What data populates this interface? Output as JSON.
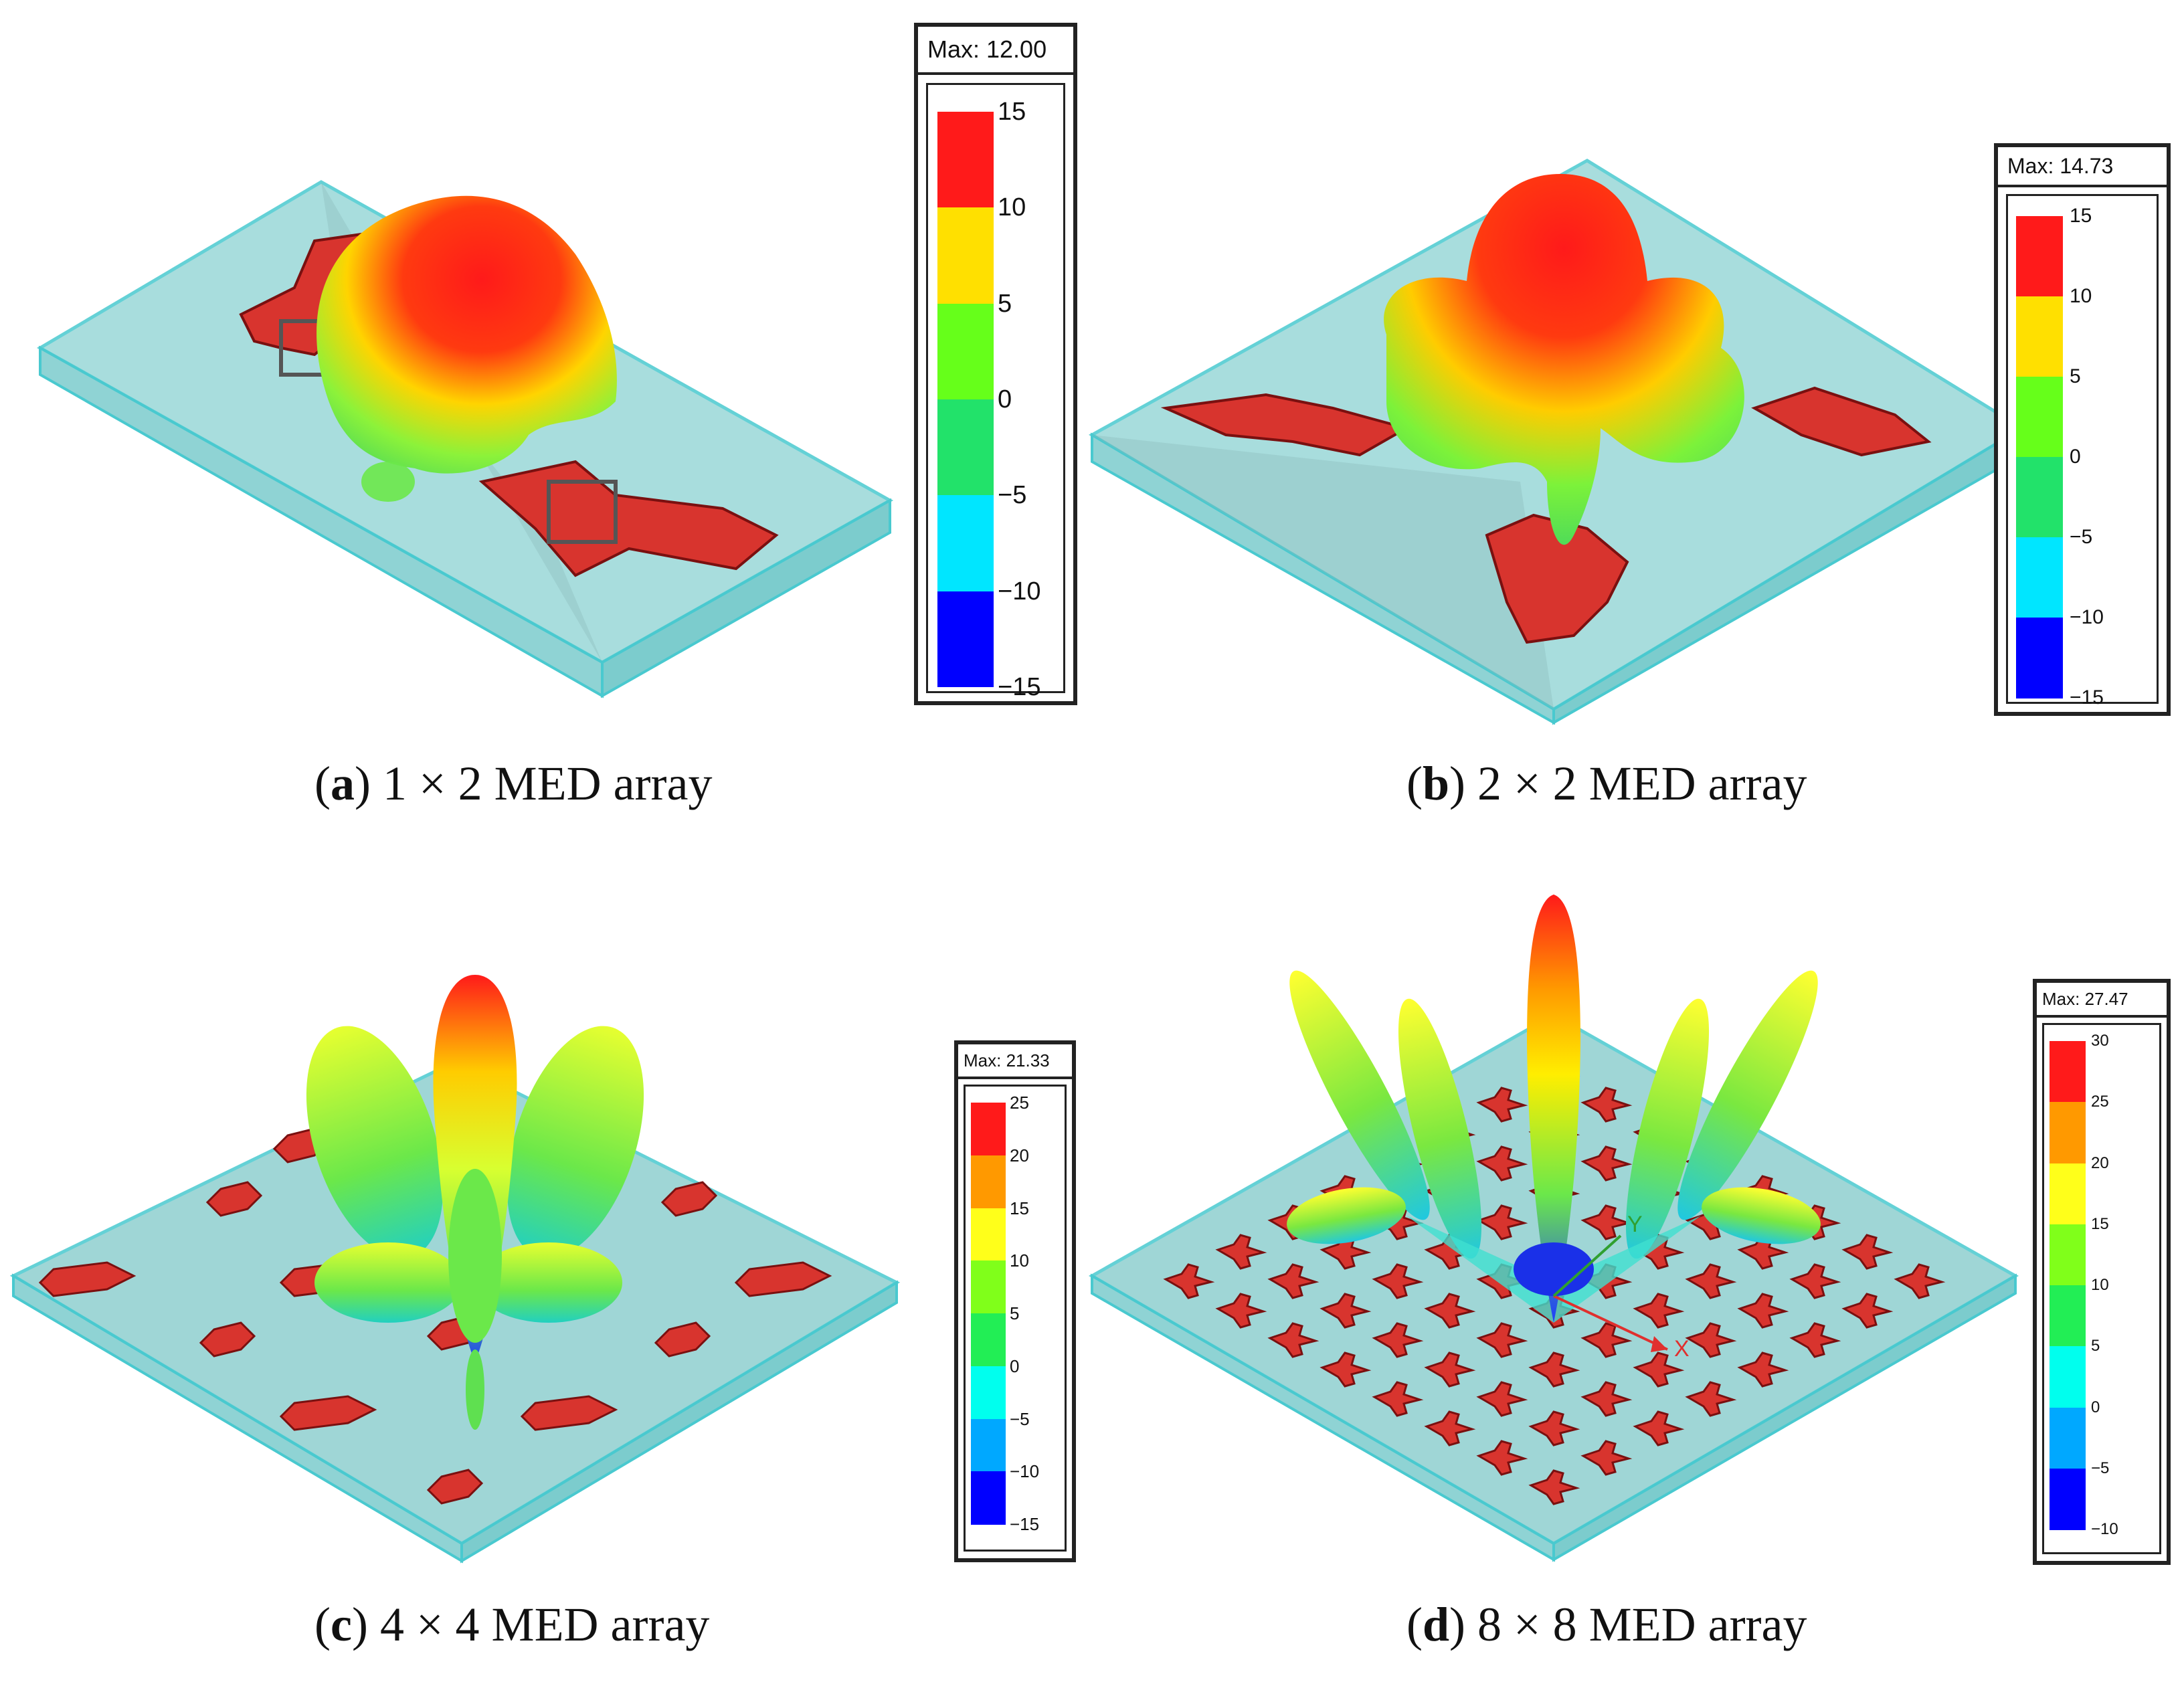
{
  "figure": {
    "panels": [
      {
        "id": "a",
        "caption_letter": "a",
        "caption_text": "1 × 2 MED array",
        "legend_max": "Max: 12.00",
        "legend_ticks": [
          "15",
          "10",
          "5",
          "0",
          "−5",
          "−10",
          "−15"
        ],
        "legend_colors": [
          "#ff1a1a",
          "#ffe000",
          "#66ff1a",
          "#22e26a",
          "#00e6ff",
          "#0000ff"
        ]
      },
      {
        "id": "b",
        "caption_letter": "b",
        "caption_text": "2 × 2 MED array",
        "legend_max": "Max: 14.73",
        "legend_ticks": [
          "15",
          "10",
          "5",
          "0",
          "−5",
          "−10",
          "−15"
        ],
        "legend_colors": [
          "#ff1a1a",
          "#ffe000",
          "#66ff1a",
          "#22e26a",
          "#00e6ff",
          "#0000ff"
        ]
      },
      {
        "id": "c",
        "caption_letter": "c",
        "caption_text": "4 × 4 MED array",
        "legend_max": "Max: 21.33",
        "legend_ticks": [
          "25",
          "20",
          "15",
          "10",
          "5",
          "0",
          "−5",
          "−10",
          "−15"
        ],
        "legend_colors": [
          "#ff1a1a",
          "#ff9900",
          "#ffff1a",
          "#80ff1a",
          "#22ee55",
          "#00ffee",
          "#00a8ff",
          "#0000ff"
        ]
      },
      {
        "id": "d",
        "caption_letter": "d",
        "caption_text": "8 × 8 MED array",
        "legend_max": "Max: 27.47",
        "legend_ticks": [
          "30",
          "25",
          "20",
          "15",
          "10",
          "5",
          "0",
          "−5",
          "−10"
        ],
        "legend_colors": [
          "#ff1a1a",
          "#ff9900",
          "#ffff1a",
          "#80ff1a",
          "#22ee55",
          "#00ffee",
          "#00a8ff",
          "#0000ff"
        ],
        "axis_labels": {
          "x": "X",
          "y": "Y"
        }
      }
    ]
  },
  "colors": {
    "substrate_fill": "#8fd3d4",
    "substrate_edge": "#49c9cf",
    "patch": "#d8342e",
    "patch_edge": "#7a1010"
  }
}
